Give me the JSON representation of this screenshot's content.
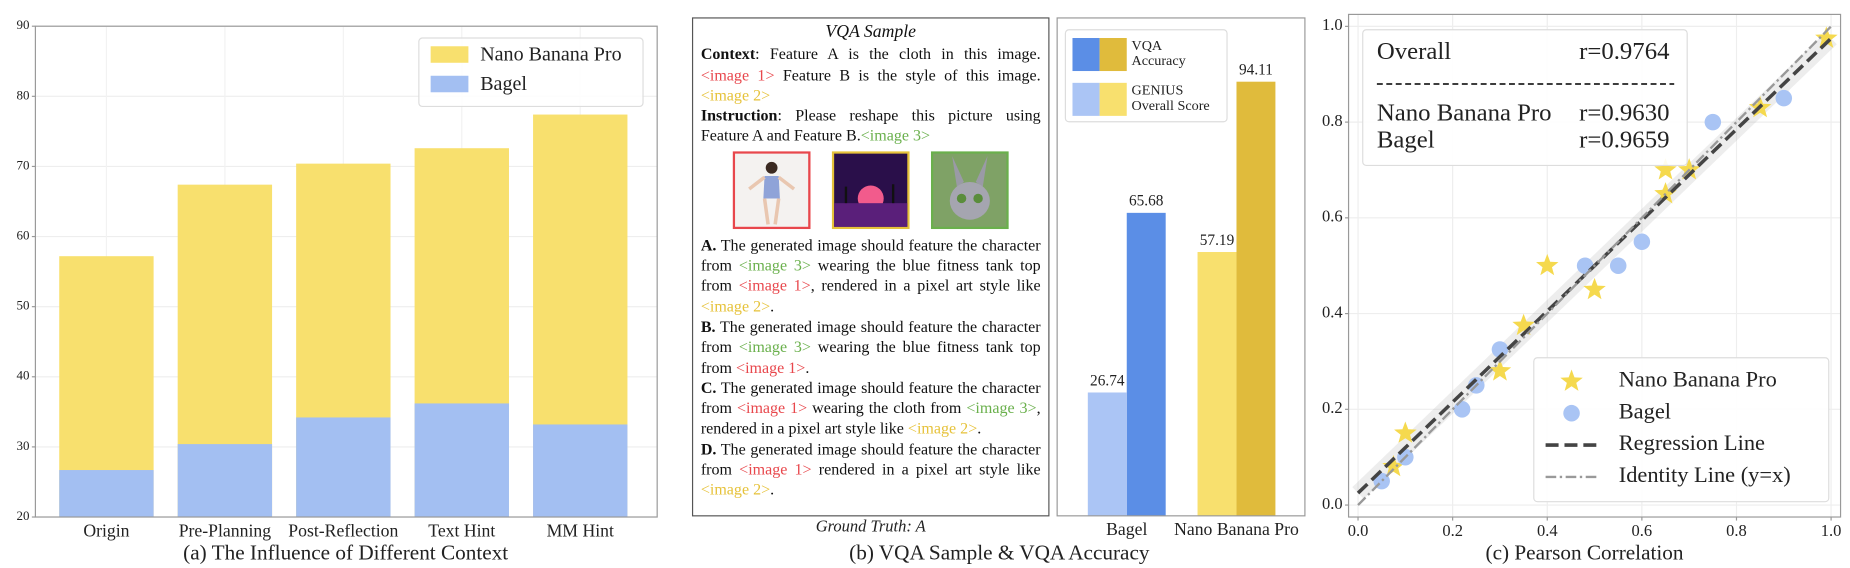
{
  "chart_data": [
    {
      "type": "bar",
      "barmode": "overlay",
      "caption": "(a) The Influence of Different Context",
      "categories": [
        "Origin",
        "Pre-Planning",
        "Post-Reflection",
        "Text Hint",
        "MM Hint"
      ],
      "series": [
        {
          "name": "Nano Banana Pro",
          "color": "#f8e06e",
          "values": [
            57.2,
            67.4,
            70.4,
            72.6,
            77.4
          ]
        },
        {
          "name": "Bagel",
          "color": "#a3bff2",
          "values": [
            26.7,
            30.4,
            34.2,
            36.2,
            33.2
          ]
        }
      ],
      "ylim": [
        20,
        90
      ],
      "yticks": [
        20,
        30,
        40,
        50,
        60,
        70,
        80,
        90
      ],
      "grid": true,
      "legend": "upper right"
    },
    {
      "type": "bar",
      "barmode": "group",
      "caption": "(b) VQA Sample & VQA Accuracy",
      "categories": [
        "Bagel",
        "Nano Banana Pro"
      ],
      "series": [
        {
          "name": "VQA Accuracy",
          "colors": [
            "#5b8ee6",
            "#e0bb3c"
          ],
          "values": [
            65.68,
            94.11
          ]
        },
        {
          "name": "GENIUS Overall Score",
          "colors": [
            "#abc5f5",
            "#f8e06e"
          ],
          "values": [
            26.74,
            57.19
          ]
        }
      ],
      "ylim": [
        0,
        100
      ],
      "legend": "upper left"
    },
    {
      "type": "scatter",
      "caption": "(c) Pearson Correlation",
      "series": [
        {
          "name": "Nano Banana Pro",
          "color": "#f5d94e",
          "marker": "star",
          "x": [
            0.075,
            0.1,
            0.3,
            0.35,
            0.4,
            0.5,
            0.65,
            0.65,
            0.7,
            0.85,
            0.99
          ],
          "values": [
            0.08,
            0.15,
            0.28,
            0.375,
            0.5,
            0.45,
            0.65,
            0.7,
            0.7,
            0.83,
            0.975
          ]
        },
        {
          "name": "Bagel",
          "color": "#a9c4f4",
          "marker": "circle",
          "x": [
            0.05,
            0.1,
            0.22,
            0.25,
            0.3,
            0.48,
            0.55,
            0.6,
            0.75,
            0.9
          ],
          "values": [
            0.05,
            0.1,
            0.2,
            0.25,
            0.325,
            0.5,
            0.5,
            0.55,
            0.8,
            0.85
          ]
        }
      ],
      "lines": [
        {
          "name": "Regression Line",
          "color": "#444444",
          "style": "dashed",
          "x": [
            0,
            1
          ],
          "values": [
            0.025,
            0.975
          ]
        },
        {
          "name": "Identity Line (y=x)",
          "color": "#999999",
          "style": "dashdot",
          "x": [
            0,
            1
          ],
          "values": [
            0,
            1
          ]
        }
      ],
      "annotations": [
        {
          "label": "Overall",
          "text": "r=0.9764"
        },
        {
          "label": "Nano Banana Pro",
          "text": "r=0.9630"
        },
        {
          "label": "Bagel",
          "text": "r=0.9659"
        }
      ],
      "xlim": [
        -0.02,
        1.02
      ],
      "ylim": [
        -0.025,
        1.025
      ],
      "xticks": [
        {
          "value": 0,
          "label": "0.0"
        },
        0.2,
        0.4,
        0.6,
        0.8,
        {
          "value": 1,
          "label": "1.0"
        }
      ],
      "yticks": [
        {
          "value": 0,
          "label": "0.0"
        },
        0.2,
        0.4,
        0.6,
        0.8,
        {
          "value": 1,
          "label": "1.0"
        }
      ],
      "grid": true,
      "legend": "lower right"
    }
  ],
  "vqa_sample": {
    "title": "VQA Sample",
    "context": [
      {
        "text": "Context",
        "bold": true
      },
      {
        "text": ": Feature A is the cloth in this image. "
      },
      {
        "text": "<image 1>",
        "color": "#e8474c"
      },
      {
        "text": " Feature B is the style of this image. "
      },
      {
        "text": "<image 2>",
        "color": "#e6c23a"
      }
    ],
    "instruction": [
      {
        "text": "Instruction",
        "bold": true
      },
      {
        "text": ": Please reshape this picture using Feature A and Feature B."
      },
      {
        "text": "<image 3>",
        "color": "#6ab04c"
      }
    ],
    "options": [
      [
        {
          "text": "A.",
          "bold": true
        },
        {
          "text": " The generated image should feature the character from "
        },
        {
          "text": "<image 3>",
          "color": "#6ab04c"
        },
        {
          "text": " wearing the blue fitness tank top from "
        },
        {
          "text": "<image 1>",
          "color": "#e8474c"
        },
        {
          "text": ", rendered in a pixel art style like "
        },
        {
          "text": "<image 2>",
          "color": "#e6c23a"
        },
        {
          "text": "."
        }
      ],
      [
        {
          "text": "B.",
          "bold": true
        },
        {
          "text": " The generated image should feature the character from "
        },
        {
          "text": "<image 3>",
          "color": "#6ab04c"
        },
        {
          "text": " wearing the blue fitness tank top from "
        },
        {
          "text": "<image 1>",
          "color": "#e8474c"
        },
        {
          "text": "."
        }
      ],
      [
        {
          "text": "C.",
          "bold": true
        },
        {
          "text": " The generated image should feature the character from "
        },
        {
          "text": "<image 1>",
          "color": "#e8474c"
        },
        {
          "text": " wearing the cloth from "
        },
        {
          "text": "<image 3>",
          "color": "#6ab04c"
        },
        {
          "text": ", rendered in a pixel art style like "
        },
        {
          "text": "<image 2>",
          "color": "#e6c23a"
        },
        {
          "text": "."
        }
      ],
      [
        {
          "text": "D.",
          "bold": true
        },
        {
          "text": " The generated image should feature the character from "
        },
        {
          "text": "<image 1>",
          "color": "#e8474c"
        },
        {
          "text": " rendered in a pixel art style like "
        },
        {
          "text": "<image 2>",
          "color": "#e6c23a"
        },
        {
          "text": "."
        }
      ]
    ],
    "ground_truth": "Ground Truth: A"
  }
}
